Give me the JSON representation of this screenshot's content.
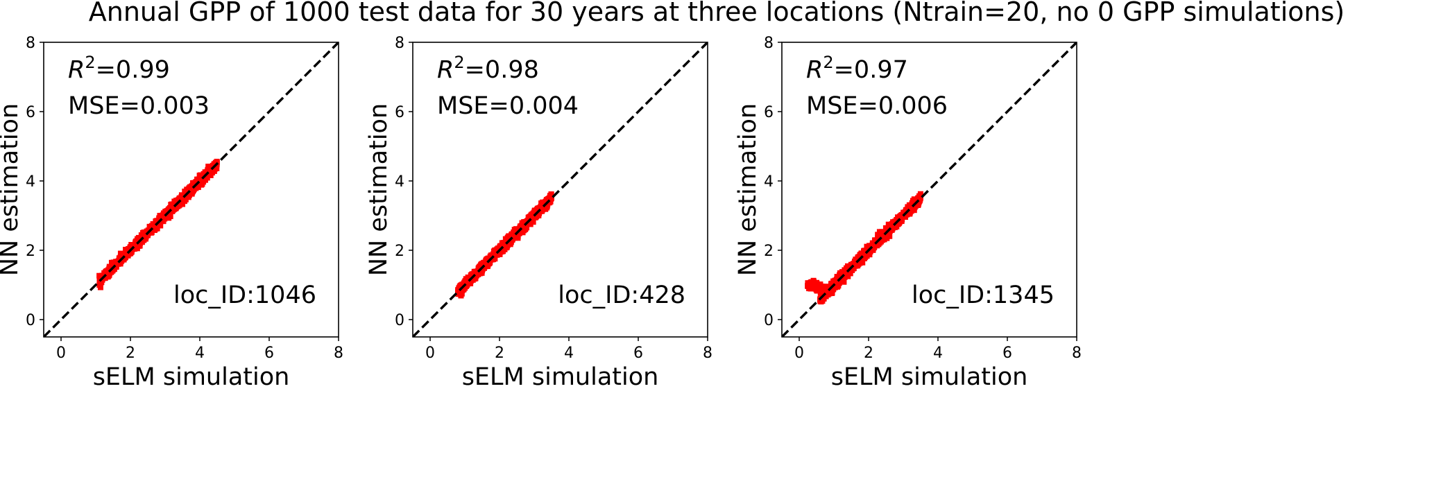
{
  "figure": {
    "title": "Annual GPP of 1000 test data for 30 years at three locations (Ntrain=20,   no 0 GPP simulations)"
  },
  "colors": {
    "points": "#ff0000",
    "identity_line": "#000000",
    "axes": "#000000"
  },
  "chart_data": [
    {
      "type": "scatter",
      "xlabel": "sELM simulation",
      "ylabel": "NN estimation",
      "xlim": [
        -0.5,
        8
      ],
      "ylim": [
        -0.5,
        8
      ],
      "xticks": [
        0,
        2,
        4,
        6,
        8
      ],
      "yticks": [
        0,
        2,
        4,
        6,
        8
      ],
      "grid": false,
      "annotations": {
        "r2_prefix": "R",
        "r2_exp": "2",
        "r2_value": "=0.99",
        "mse": "MSE=0.003",
        "loc_id": "loc_ID:1046"
      },
      "identity_line": {
        "from": [
          -0.5,
          -0.5
        ],
        "to": [
          8,
          8
        ],
        "style": "dashed"
      },
      "point_cloud": {
        "x_min": 1.1,
        "x_max": 4.5,
        "n_points": 1000,
        "lower_tail": []
      }
    },
    {
      "type": "scatter",
      "xlabel": "sELM simulation",
      "ylabel": "NN estimation",
      "xlim": [
        -0.5,
        8
      ],
      "ylim": [
        -0.5,
        8
      ],
      "xticks": [
        0,
        2,
        4,
        6,
        8
      ],
      "yticks": [
        0,
        2,
        4,
        6,
        8
      ],
      "grid": false,
      "annotations": {
        "r2_prefix": "R",
        "r2_exp": "2",
        "r2_value": "=0.98",
        "mse": "MSE=0.004",
        "loc_id": "loc_ID:428"
      },
      "identity_line": {
        "from": [
          -0.5,
          -0.5
        ],
        "to": [
          8,
          8
        ],
        "style": "dashed"
      },
      "point_cloud": {
        "x_min": 0.8,
        "x_max": 3.5,
        "n_points": 1000,
        "lower_tail": []
      }
    },
    {
      "type": "scatter",
      "xlabel": "sELM simulation",
      "ylabel": "NN estimation",
      "xlim": [
        -0.5,
        8
      ],
      "ylim": [
        -0.5,
        8
      ],
      "xticks": [
        0,
        2,
        4,
        6,
        8
      ],
      "yticks": [
        0,
        2,
        4,
        6,
        8
      ],
      "grid": false,
      "annotations": {
        "r2_prefix": "R",
        "r2_exp": "2",
        "r2_value": "=0.97",
        "mse": "MSE=0.006",
        "loc_id": "loc_ID:1345"
      },
      "identity_line": {
        "from": [
          -0.5,
          -0.5
        ],
        "to": [
          8,
          8
        ],
        "style": "dashed"
      },
      "point_cloud": {
        "x_min": 0.6,
        "x_max": 3.5,
        "n_points": 1000,
        "lower_tail": [
          [
            0.3,
            1.0
          ],
          [
            0.4,
            1.0
          ],
          [
            0.5,
            0.95
          ],
          [
            0.6,
            0.9
          ],
          [
            0.7,
            0.85
          ],
          [
            0.8,
            0.8
          ],
          [
            0.9,
            0.85
          ]
        ]
      }
    }
  ]
}
